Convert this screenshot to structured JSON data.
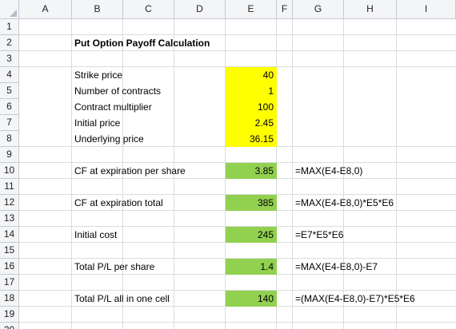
{
  "columns": [
    "A",
    "B",
    "C",
    "D",
    "E",
    "F",
    "G",
    "H",
    "I"
  ],
  "rows": [
    "1",
    "2",
    "3",
    "4",
    "5",
    "6",
    "7",
    "8",
    "9",
    "10",
    "11",
    "12",
    "13",
    "14",
    "15",
    "16",
    "17",
    "18",
    "19",
    "20"
  ],
  "title": "Put Option Payoff Calculation",
  "inputs": [
    {
      "label": "Strike price",
      "value": "40"
    },
    {
      "label": "Number of contracts",
      "value": "1"
    },
    {
      "label": "Contract multiplier",
      "value": "100"
    },
    {
      "label": "Initial price",
      "value": "2.45"
    },
    {
      "label": "Underlying price",
      "value": "36.15"
    }
  ],
  "results": [
    {
      "label": "CF at expiration per share",
      "value": "3.85",
      "formula": "=MAX(E4-E8,0)"
    },
    {
      "label": "CF at expiration total",
      "value": "385",
      "formula": "=MAX(E4-E8,0)*E5*E6"
    },
    {
      "label": "Initial cost",
      "value": "245",
      "formula": "=E7*E5*E6"
    },
    {
      "label": "Total P/L per share",
      "value": "1.4",
      "formula": "=MAX(E4-E8,0)-E7"
    },
    {
      "label": "Total P/L all in one cell",
      "value": "140",
      "formula": "=(MAX(E4-E8,0)-E7)*E5*E6"
    }
  ],
  "colors": {
    "input_fill": "#ffff00",
    "result_fill": "#92d050",
    "header_bg": "#f4f5f7",
    "grid": "#dadcdd"
  }
}
